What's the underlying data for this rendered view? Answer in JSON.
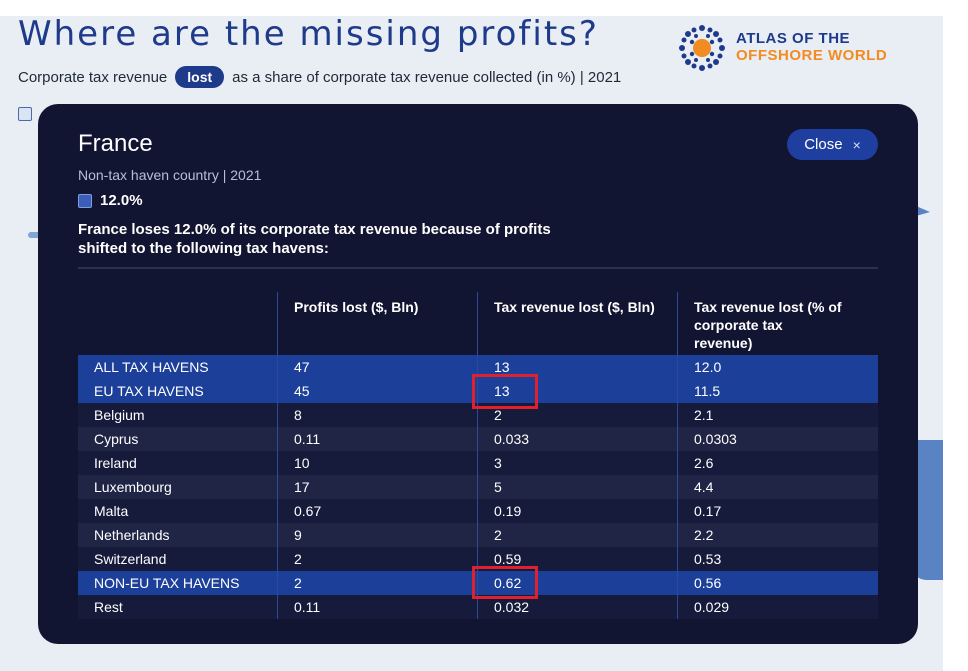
{
  "page": {
    "headline": "Where are the missing profits?",
    "subtitle_before": "Corporate tax revenue",
    "subtitle_pill": "lost",
    "subtitle_after": "as a share of corporate tax revenue collected (in %) | 2021",
    "logo_line1": "ATLAS OF THE",
    "logo_line2": "OFFSHORE WORLD"
  },
  "modal": {
    "country": "France",
    "type": "Non-tax haven country | 2021",
    "pct": "12.0%",
    "description": "France loses 12.0% of its corporate tax revenue because of profits shifted to the following tax havens:",
    "close_label": "Close",
    "close_icon": "×",
    "columns": [
      "",
      "Profits lost ($, Bln)",
      "Tax revenue lost ($, Bln)",
      "Tax revenue lost (% of corporate tax revenue)"
    ],
    "rows": [
      {
        "name": "ALL TAX HAVENS",
        "profits": "47",
        "tax": "13",
        "pct": "12.0"
      },
      {
        "name": "EU TAX HAVENS",
        "profits": "45",
        "tax": "13",
        "pct": "11.5"
      },
      {
        "name": "Belgium",
        "profits": "8",
        "tax": "2",
        "pct": "2.1"
      },
      {
        "name": "Cyprus",
        "profits": "0.11",
        "tax": "0.033",
        "pct": "0.0303"
      },
      {
        "name": "Ireland",
        "profits": "10",
        "tax": "3",
        "pct": "2.6"
      },
      {
        "name": "Luxembourg",
        "profits": "17",
        "tax": "5",
        "pct": "4.4"
      },
      {
        "name": "Malta",
        "profits": "0.67",
        "tax": "0.19",
        "pct": "0.17"
      },
      {
        "name": "Netherlands",
        "profits": "9",
        "tax": "2",
        "pct": "2.2"
      },
      {
        "name": "Switzerland",
        "profits": "2",
        "tax": "0.59",
        "pct": "0.53"
      },
      {
        "name": "NON-EU TAX HAVENS",
        "profits": "2",
        "tax": "0.62",
        "pct": "0.56"
      },
      {
        "name": "Rest",
        "profits": "0.11",
        "tax": "0.032",
        "pct": "0.029"
      }
    ]
  },
  "colors": {
    "modal_bg": "#121532",
    "highlight_row": "#1c3f9a",
    "annotation_box": "#e0202c",
    "brand_blue": "#1e3a8a",
    "brand_orange": "#f28b22"
  }
}
